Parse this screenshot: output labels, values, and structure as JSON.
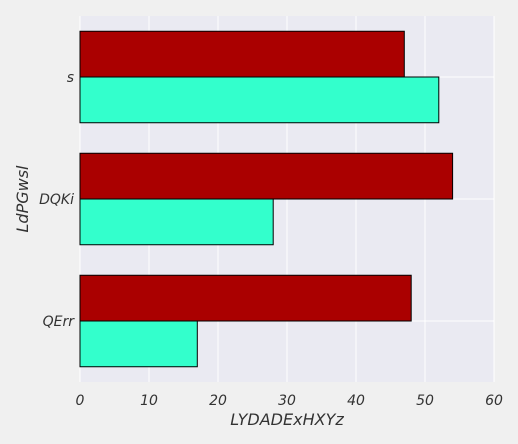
{
  "chart_data": {
    "type": "bar",
    "orientation": "horizontal",
    "title": "",
    "xlabel": "LYDADExHXYz",
    "ylabel": "LdPGwsl",
    "categories": [
      "s",
      "DQKi",
      "QErr"
    ],
    "series": [
      {
        "values": [
          47,
          54,
          48
        ],
        "color": "#aa0000"
      },
      {
        "values": [
          52,
          28,
          17
        ],
        "color": "#33ffcc"
      }
    ],
    "xlim": [
      0,
      60
    ],
    "xticks": [
      0,
      10,
      20,
      30,
      40,
      50,
      60
    ],
    "grid": true,
    "legend": "none",
    "colors": {
      "plot_background": "#eaeaf2",
      "page_background": "#f0f0f0",
      "grid": "#ffffff",
      "bar_edge": "#000000"
    }
  }
}
